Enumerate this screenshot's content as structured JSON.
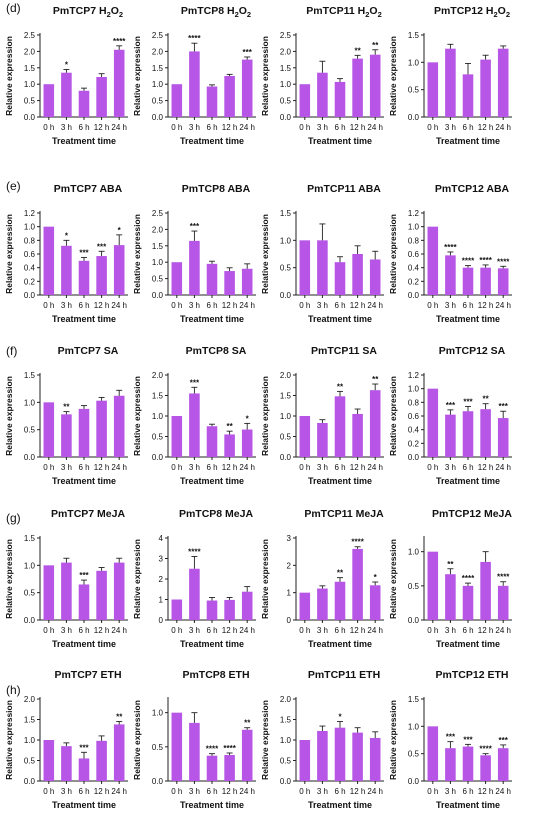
{
  "panel_labels": [
    "(d)",
    "(e)",
    "(f)",
    "(g)",
    "(h)"
  ],
  "colors": {
    "bar": "#b655e6",
    "axis": "#222222",
    "text": "#111111"
  },
  "chart_data": [
    {
      "type": "bar",
      "title": "PmTCP7 H2O2",
      "title_main": "PmTCP7 H",
      "title_sub": "2",
      "title_mid": "O",
      "title_sub2": "2",
      "xlabel": "Treatment time",
      "ylabel": "Relative expression",
      "categories": [
        "0 h",
        "3 h",
        "6 h",
        "12 h",
        "24 h"
      ],
      "values": [
        1.0,
        1.35,
        0.8,
        1.22,
        2.05
      ],
      "errors": [
        0,
        0.1,
        0.08,
        0.1,
        0.12
      ],
      "significance": [
        "",
        "*",
        "",
        "",
        "****"
      ],
      "ylim": [
        0,
        2.5
      ],
      "yticks": [
        "0.0",
        "0.5",
        "1.0",
        "1.5",
        "2.0",
        "2.5"
      ]
    },
    {
      "type": "bar",
      "title": "PmTCP8 H2O2",
      "title_main": "PmTCP8 H",
      "title_sub": "2",
      "title_mid": "O",
      "title_sub2": "2",
      "xlabel": "Treatment time",
      "ylabel": "Relative expression",
      "categories": [
        "0 h",
        "3 h",
        "6 h",
        "12 h",
        "24 h"
      ],
      "values": [
        1.0,
        2.0,
        0.93,
        1.25,
        1.75
      ],
      "errors": [
        0,
        0.25,
        0.05,
        0.05,
        0.08
      ],
      "significance": [
        "",
        "****",
        "",
        "",
        "***"
      ],
      "ylim": [
        0,
        2.5
      ],
      "yticks": [
        "0.0",
        "0.5",
        "1.0",
        "1.5",
        "2.0",
        "2.5"
      ]
    },
    {
      "type": "bar",
      "title": "PmTCP11 H2O2",
      "title_main": "PmTCP11 H",
      "title_sub": "2",
      "title_mid": "O",
      "title_sub2": "2",
      "xlabel": "Treatment time",
      "ylabel": "Relative expression",
      "categories": [
        "0 h",
        "3 h",
        "6 h",
        "12 h",
        "24 h"
      ],
      "values": [
        1.0,
        1.35,
        1.07,
        1.78,
        1.9
      ],
      "errors": [
        0,
        0.35,
        0.1,
        0.1,
        0.15
      ],
      "significance": [
        "",
        "",
        "",
        "**",
        "**"
      ],
      "ylim": [
        0,
        2.5
      ],
      "yticks": [
        "0.0",
        "0.5",
        "1.0",
        "1.5",
        "2.0",
        "2.5"
      ]
    },
    {
      "type": "bar",
      "title": "PmTCP12 H2O2",
      "title_main": "PmTCP12 H",
      "title_sub": "2",
      "title_mid": "O",
      "title_sub2": "2",
      "xlabel": "Treatment time",
      "ylabel": "Relative expression",
      "categories": [
        "0 h",
        "3 h",
        "6 h",
        "12 h",
        "24 h"
      ],
      "values": [
        1.0,
        1.25,
        0.78,
        1.05,
        1.25
      ],
      "errors": [
        0,
        0.08,
        0.2,
        0.08,
        0.05
      ],
      "significance": [
        "",
        "",
        "",
        "",
        ""
      ],
      "ylim": [
        0,
        1.5
      ],
      "yticks": [
        "0.0",
        "0.5",
        "1.0",
        "1.5"
      ]
    },
    {
      "type": "bar",
      "title": "PmTCP7 ABA",
      "xlabel": "Treatment time",
      "ylabel": "Relative expression",
      "categories": [
        "0 h",
        "3 h",
        "6 h",
        "12 h",
        "24 h"
      ],
      "values": [
        1.0,
        0.72,
        0.5,
        0.57,
        0.73
      ],
      "errors": [
        0,
        0.08,
        0.05,
        0.07,
        0.15
      ],
      "significance": [
        "",
        "*",
        "***",
        "***",
        "*"
      ],
      "ylim": [
        0,
        1.2
      ],
      "yticks": [
        "0.0",
        "0.2",
        "0.4",
        "0.6",
        "0.8",
        "1.0",
        "1.2"
      ]
    },
    {
      "type": "bar",
      "title": "PmTCP8 ABA",
      "xlabel": "Treatment time",
      "ylabel": "Relative expression",
      "categories": [
        "0 h",
        "3 h",
        "6 h",
        "12 h",
        "24 h"
      ],
      "values": [
        1.0,
        1.65,
        0.95,
        0.73,
        0.8
      ],
      "errors": [
        0,
        0.3,
        0.08,
        0.1,
        0.15
      ],
      "significance": [
        "",
        "***",
        "",
        "",
        ""
      ],
      "ylim": [
        0,
        2.5
      ],
      "yticks": [
        "0.0",
        "0.5",
        "1.0",
        "1.5",
        "2.0",
        "2.5"
      ]
    },
    {
      "type": "bar",
      "title": "PmTCP11 ABA",
      "xlabel": "Treatment time",
      "ylabel": "Relative expression",
      "categories": [
        "0 h",
        "3 h",
        "6 h",
        "12 h",
        "24 h"
      ],
      "values": [
        1.0,
        1.0,
        0.6,
        0.75,
        0.65
      ],
      "errors": [
        0,
        0.3,
        0.1,
        0.15,
        0.15
      ],
      "significance": [
        "",
        "",
        "",
        "",
        ""
      ],
      "ylim": [
        0,
        1.5
      ],
      "yticks": [
        "0.0",
        "0.5",
        "1.0",
        "1.5"
      ]
    },
    {
      "type": "bar",
      "title": "PmTCP12 ABA",
      "xlabel": "Treatment time",
      "ylabel": "Relative expression",
      "categories": [
        "0 h",
        "3 h",
        "6 h",
        "12 h",
        "24 h"
      ],
      "values": [
        1.0,
        0.58,
        0.4,
        0.4,
        0.39
      ],
      "errors": [
        0,
        0.05,
        0.03,
        0.04,
        0.03
      ],
      "significance": [
        "",
        "****",
        "****",
        "****",
        "****"
      ],
      "ylim": [
        0,
        1.2
      ],
      "yticks": [
        "0.0",
        "0.2",
        "0.4",
        "0.6",
        "0.8",
        "1.0",
        "1.2"
      ]
    },
    {
      "type": "bar",
      "title": "PmTCP7 SA",
      "xlabel": "Treatment time",
      "ylabel": "Relative expression",
      "categories": [
        "0 h",
        "3 h",
        "6 h",
        "12 h",
        "24 h"
      ],
      "values": [
        1.0,
        0.78,
        0.88,
        1.03,
        1.12
      ],
      "errors": [
        0,
        0.05,
        0.06,
        0.06,
        0.1
      ],
      "significance": [
        "",
        "**",
        "",
        "",
        ""
      ],
      "ylim": [
        0,
        1.5
      ],
      "yticks": [
        "0.0",
        "0.5",
        "1.0",
        "1.5"
      ]
    },
    {
      "type": "bar",
      "title": "PmTCP8 SA",
      "xlabel": "Treatment time",
      "ylabel": "Relative expression",
      "categories": [
        "0 h",
        "3 h",
        "6 h",
        "12 h",
        "24 h"
      ],
      "values": [
        1.0,
        1.55,
        0.75,
        0.55,
        0.67
      ],
      "errors": [
        0,
        0.15,
        0.05,
        0.08,
        0.15
      ],
      "significance": [
        "",
        "***",
        "",
        "**",
        "*"
      ],
      "ylim": [
        0,
        2.0
      ],
      "yticks": [
        "0.0",
        "0.5",
        "1.0",
        "1.5",
        "2.0"
      ]
    },
    {
      "type": "bar",
      "title": "PmTCP11 SA",
      "xlabel": "Treatment time",
      "ylabel": "Relative expression",
      "categories": [
        "0 h",
        "3 h",
        "6 h",
        "12 h",
        "24 h"
      ],
      "values": [
        1.0,
        0.83,
        1.48,
        1.05,
        1.63
      ],
      "errors": [
        0,
        0.08,
        0.12,
        0.12,
        0.15
      ],
      "significance": [
        "",
        "",
        "**",
        "",
        "**"
      ],
      "ylim": [
        0,
        2.0
      ],
      "yticks": [
        "0.0",
        "0.5",
        "1.0",
        "1.5",
        "2.0"
      ]
    },
    {
      "type": "bar",
      "title": "PmTCP12 SA",
      "xlabel": "Treatment time",
      "ylabel": "Relative expression",
      "categories": [
        "0 h",
        "3 h",
        "6 h",
        "12 h",
        "24 h"
      ],
      "values": [
        1.0,
        0.62,
        0.67,
        0.7,
        0.57
      ],
      "errors": [
        0,
        0.07,
        0.07,
        0.08,
        0.1
      ],
      "significance": [
        "",
        "***",
        "***",
        "**",
        "***"
      ],
      "ylim": [
        0,
        1.2
      ],
      "yticks": [
        "0.0",
        "0.2",
        "0.4",
        "0.6",
        "0.8",
        "1.0",
        "1.2"
      ]
    },
    {
      "type": "bar",
      "title": "PmTCP7 MeJA",
      "xlabel": "Treatment time",
      "ylabel": "Relative expression",
      "categories": [
        "0 h",
        "3 h",
        "6 h",
        "12 h",
        "24 h"
      ],
      "values": [
        1.0,
        1.05,
        0.65,
        0.9,
        1.05
      ],
      "errors": [
        0,
        0.08,
        0.08,
        0.06,
        0.08
      ],
      "significance": [
        "",
        "",
        "***",
        "",
        ""
      ],
      "ylim": [
        0,
        1.5
      ],
      "yticks": [
        "0.0",
        "0.5",
        "1.0",
        "1.5"
      ]
    },
    {
      "type": "bar",
      "title": "PmTCP8 MeJA",
      "xlabel": "Treatment time",
      "ylabel": "Relative expression",
      "categories": [
        "0 h",
        "3 h",
        "6 h",
        "12 h",
        "24 h"
      ],
      "values": [
        1.0,
        2.5,
        0.95,
        0.98,
        1.38
      ],
      "errors": [
        0,
        0.6,
        0.15,
        0.12,
        0.25
      ],
      "significance": [
        "",
        "****",
        "",
        "",
        ""
      ],
      "ylim": [
        0,
        4
      ],
      "yticks": [
        "0",
        "1",
        "2",
        "3",
        "4"
      ]
    },
    {
      "type": "bar",
      "title": "PmTCP11 MeJA",
      "xlabel": "Treatment time",
      "ylabel": "Relative expression",
      "categories": [
        "0 h",
        "3 h",
        "6 h",
        "12 h",
        "24 h"
      ],
      "values": [
        1.0,
        1.15,
        1.4,
        2.6,
        1.27
      ],
      "errors": [
        0,
        0.1,
        0.15,
        0.08,
        0.12
      ],
      "significance": [
        "",
        "",
        "**",
        "****",
        "*"
      ],
      "ylim": [
        0,
        3
      ],
      "yticks": [
        "0",
        "1",
        "2",
        "3"
      ]
    },
    {
      "type": "bar",
      "title": "PmTCP12 MeJA",
      "xlabel": "Treatment time",
      "ylabel": "Relative expression",
      "categories": [
        "0 h",
        "3 h",
        "6 h",
        "12 h",
        "24 h"
      ],
      "values": [
        1.0,
        0.67,
        0.5,
        0.85,
        0.5
      ],
      "errors": [
        0,
        0.08,
        0.04,
        0.15,
        0.06
      ],
      "significance": [
        "",
        "**",
        "****",
        "",
        "****"
      ],
      "ylim": [
        0,
        1.2
      ],
      "yticks": [
        "0.0",
        "0.5",
        "1.0"
      ]
    },
    {
      "type": "bar",
      "title": "PmTCP7 ETH",
      "xlabel": "Treatment time",
      "ylabel": "Relative expression",
      "categories": [
        "0 h",
        "3 h",
        "6 h",
        "12 h",
        "24 h"
      ],
      "values": [
        1.0,
        0.85,
        0.55,
        0.98,
        1.38
      ],
      "errors": [
        0,
        0.08,
        0.15,
        0.12,
        0.07
      ],
      "significance": [
        "",
        "",
        "***",
        "",
        "**"
      ],
      "ylim": [
        0,
        2.0
      ],
      "yticks": [
        "0.0",
        "0.5",
        "1.0",
        "1.5",
        "2.0"
      ]
    },
    {
      "type": "bar",
      "title": "PmTCP8 ETH",
      "xlabel": "Treatment time",
      "ylabel": "Relative expression",
      "categories": [
        "0 h",
        "3 h",
        "6 h",
        "12 h",
        "24 h"
      ],
      "values": [
        1.0,
        0.85,
        0.37,
        0.38,
        0.75
      ],
      "errors": [
        0,
        0.15,
        0.03,
        0.03,
        0.03
      ],
      "significance": [
        "",
        "",
        "****",
        "****",
        "**"
      ],
      "ylim": [
        0,
        1.2
      ],
      "yticks": [
        "0.0",
        "0.5",
        "1.0"
      ]
    },
    {
      "type": "bar",
      "title": "PmTCP11 ETH",
      "xlabel": "Treatment time",
      "ylabel": "Relative expression",
      "categories": [
        "0 h",
        "3 h",
        "6 h",
        "12 h",
        "24 h"
      ],
      "values": [
        1.0,
        1.22,
        1.3,
        1.18,
        1.05
      ],
      "errors": [
        0,
        0.12,
        0.15,
        0.12,
        0.15
      ],
      "significance": [
        "",
        "",
        "*",
        "",
        ""
      ],
      "ylim": [
        0,
        2.0
      ],
      "yticks": [
        "0.0",
        "0.5",
        "1.0",
        "1.5",
        "2.0"
      ]
    },
    {
      "type": "bar",
      "title": "PmTCP12 ETH",
      "xlabel": "Treatment time",
      "ylabel": "Relative expression",
      "categories": [
        "0 h",
        "3 h",
        "6 h",
        "12 h",
        "24 h"
      ],
      "values": [
        1.0,
        0.6,
        0.63,
        0.47,
        0.6
      ],
      "errors": [
        0,
        0.12,
        0.04,
        0.03,
        0.06
      ],
      "significance": [
        "",
        "***",
        "***",
        "****",
        "***"
      ],
      "ylim": [
        0,
        1.5
      ],
      "yticks": [
        "0.0",
        "0.5",
        "1.0",
        "1.5"
      ]
    }
  ]
}
